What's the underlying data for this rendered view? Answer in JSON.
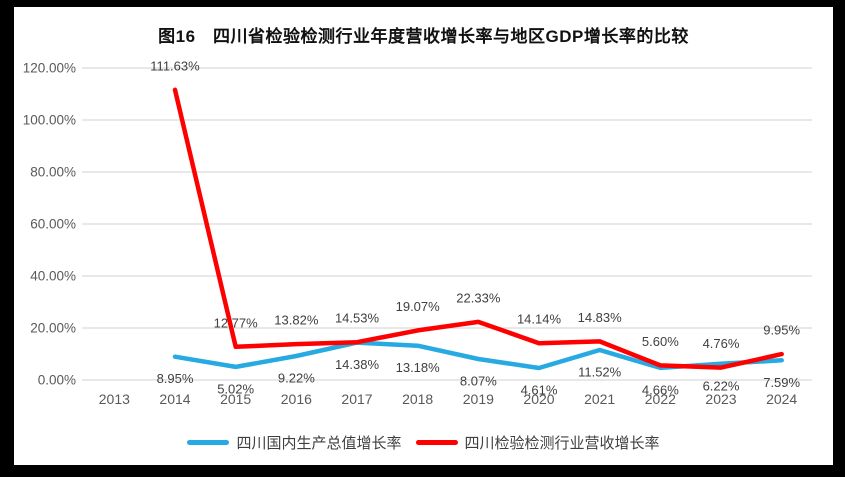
{
  "chart_data": {
    "type": "line",
    "title": "图16　四川省检验检测行业年度营收增长率与地区GDP增长率的比较",
    "categories": [
      "2013",
      "2014",
      "2015",
      "2016",
      "2017",
      "2018",
      "2019",
      "2020",
      "2021",
      "2022",
      "2023",
      "2024"
    ],
    "xlabel": "",
    "ylabel": "",
    "grid": true,
    "legend_position": "bottom",
    "y_axis": {
      "min": 0,
      "max": 120,
      "step": 20,
      "tick_labels": [
        "0.00%",
        "20.00%",
        "40.00%",
        "60.00%",
        "80.00%",
        "100.00%",
        "120.00%"
      ]
    },
    "series": [
      {
        "name": "四川国内生产总值增长率",
        "color": "#27AAE1",
        "label_placement": "below",
        "values": [
          null,
          8.95,
          5.02,
          9.22,
          14.38,
          13.18,
          8.07,
          4.61,
          11.52,
          4.66,
          6.22,
          7.59
        ],
        "labels": [
          "",
          "8.95%",
          "5.02%",
          "9.22%",
          "14.38%",
          "13.18%",
          "8.07%",
          "4.61%",
          "11.52%",
          "4.66%",
          "6.22%",
          "7.59%"
        ]
      },
      {
        "name": "四川检验检测行业营收增长率",
        "color": "#FE0000",
        "label_placement": "above",
        "values": [
          null,
          111.63,
          12.77,
          13.82,
          14.53,
          19.07,
          22.33,
          14.14,
          14.83,
          5.6,
          4.76,
          9.95
        ],
        "labels": [
          "",
          "111.63%",
          "12.77%",
          "13.82%",
          "14.53%",
          "19.07%",
          "22.33%",
          "14.14%",
          "14.83%",
          "5.60%",
          "4.76%",
          "9.95%"
        ]
      }
    ],
    "colors": {
      "background": "#000000",
      "panel": "#ffffff",
      "gridline": "#d9d9d9",
      "axis_text": "#595959",
      "data_label_text": "#3f3f3f"
    }
  }
}
